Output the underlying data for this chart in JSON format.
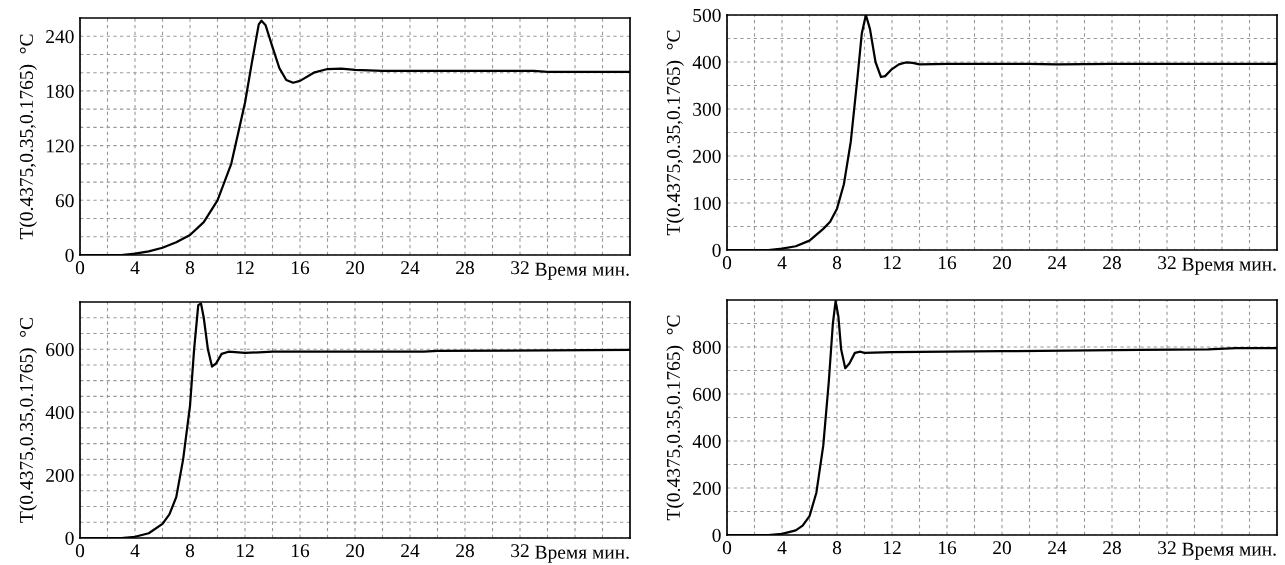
{
  "chart_data": [
    {
      "type": "line",
      "xlabel": "Время мин.",
      "ylabel": "T(0.4375,0.35,0.1765)  °C",
      "grid": true,
      "xlim": [
        0,
        40
      ],
      "ylim": [
        0,
        260
      ],
      "xticks": [
        0,
        {
          "value": 2,
          "label": null
        },
        4,
        {
          "value": 6,
          "label": null
        },
        8,
        {
          "value": 10,
          "label": null
        },
        12,
        {
          "value": 14,
          "label": null
        },
        16,
        {
          "value": 18,
          "label": null
        },
        20,
        {
          "value": 22,
          "label": null
        },
        24,
        {
          "value": 26,
          "label": null
        },
        28,
        {
          "value": 30,
          "label": null
        },
        32,
        {
          "value": 34,
          "label": null
        },
        {
          "value": 36,
          "label": null
        },
        {
          "value": 38,
          "label": null
        }
      ],
      "yticks": [
        0,
        {
          "value": 20,
          "label": null
        },
        {
          "value": 40,
          "label": null
        },
        60,
        {
          "value": 80,
          "label": null
        },
        {
          "value": 100,
          "label": null
        },
        120,
        {
          "value": 140,
          "label": null
        },
        {
          "value": 160,
          "label": null
        },
        180,
        {
          "value": 200,
          "label": null
        },
        {
          "value": 220,
          "label": null
        },
        240
      ],
      "series": [
        {
          "color": "#000000",
          "x": [
            0,
            3,
            4,
            5,
            6,
            7,
            8,
            9,
            10,
            11,
            12,
            12.5,
            13,
            13.2,
            13.5,
            14,
            14.5,
            15,
            15.5,
            16,
            17,
            18,
            19,
            20,
            22,
            30,
            33,
            34,
            40
          ],
          "values": [
            0,
            0,
            1.5,
            4,
            8,
            14,
            22,
            36,
            60,
            100,
            167,
            211,
            253,
            257,
            252,
            228,
            205,
            192,
            189,
            191,
            200,
            204,
            204.5,
            203,
            202,
            202,
            202,
            201,
            201
          ]
        }
      ]
    },
    {
      "type": "line",
      "xlabel": "Время мин.",
      "ylabel": "T(0.4375,0.35,0.1765)  °C",
      "grid": true,
      "xlim": [
        0,
        40
      ],
      "ylim": [
        0,
        500
      ],
      "xticks": [
        0,
        {
          "value": 2,
          "label": null
        },
        4,
        {
          "value": 6,
          "label": null
        },
        8,
        {
          "value": 10,
          "label": null
        },
        12,
        {
          "value": 14,
          "label": null
        },
        16,
        {
          "value": 18,
          "label": null
        },
        20,
        {
          "value": 22,
          "label": null
        },
        24,
        {
          "value": 26,
          "label": null
        },
        28,
        {
          "value": 30,
          "label": null
        },
        32,
        {
          "value": 34,
          "label": null
        },
        {
          "value": 36,
          "label": null
        },
        {
          "value": 38,
          "label": null
        }
      ],
      "yticks": [
        0,
        {
          "value": 50,
          "label": null
        },
        100,
        {
          "value": 150,
          "label": null
        },
        200,
        {
          "value": 250,
          "label": null
        },
        300,
        {
          "value": 350,
          "label": null
        },
        400,
        {
          "value": 450,
          "label": null
        },
        500
      ],
      "series": [
        {
          "color": "#000000",
          "x": [
            0,
            3,
            4,
            5,
            6,
            7,
            7.5,
            8,
            8.5,
            9,
            9.5,
            9.8,
            10.1,
            10.4,
            10.8,
            11.2,
            11.5,
            12,
            12.5,
            13,
            13.5,
            14,
            16,
            22,
            24,
            28,
            40
          ],
          "values": [
            0,
            0,
            3,
            8,
            20,
            45,
            60,
            88,
            140,
            230,
            370,
            460,
            500,
            470,
            400,
            368,
            370,
            385,
            395,
            399,
            398,
            395,
            396,
            396,
            395,
            396,
            396
          ]
        }
      ]
    },
    {
      "type": "line",
      "xlabel": "Время мин.",
      "ylabel": "T(0.4375,0.35,0.1765)  °C",
      "grid": true,
      "xlim": [
        0,
        40
      ],
      "ylim": [
        0,
        750
      ],
      "xticks": [
        0,
        {
          "value": 2,
          "label": null
        },
        4,
        {
          "value": 6,
          "label": null
        },
        8,
        {
          "value": 10,
          "label": null
        },
        12,
        {
          "value": 14,
          "label": null
        },
        16,
        {
          "value": 18,
          "label": null
        },
        20,
        {
          "value": 22,
          "label": null
        },
        24,
        {
          "value": 26,
          "label": null
        },
        28,
        {
          "value": 30,
          "label": null
        },
        32,
        {
          "value": 34,
          "label": null
        },
        {
          "value": 36,
          "label": null
        },
        {
          "value": 38,
          "label": null
        }
      ],
      "yticks": [
        0,
        {
          "value": 50,
          "label": null
        },
        {
          "value": 100,
          "label": null
        },
        {
          "value": 150,
          "label": null
        },
        200,
        {
          "value": 250,
          "label": null
        },
        {
          "value": 300,
          "label": null
        },
        {
          "value": 350,
          "label": null
        },
        400,
        {
          "value": 450,
          "label": null
        },
        {
          "value": 500,
          "label": null
        },
        {
          "value": 550,
          "label": null
        },
        600,
        {
          "value": 650,
          "label": null
        },
        {
          "value": 700,
          "label": null
        }
      ],
      "series": [
        {
          "color": "#000000",
          "x": [
            0,
            3,
            4,
            5,
            6,
            6.5,
            7,
            7.5,
            8,
            8.3,
            8.6,
            8.8,
            9,
            9.3,
            9.6,
            9.9,
            10.3,
            10.8,
            12,
            14,
            25,
            26,
            34,
            40
          ],
          "values": [
            0,
            0,
            4,
            15,
            45,
            75,
            130,
            250,
            420,
            600,
            740,
            745,
            700,
            600,
            545,
            555,
            585,
            592,
            588,
            592,
            592,
            595,
            596,
            598
          ]
        }
      ]
    },
    {
      "type": "line",
      "xlabel": "Время мин.",
      "ylabel": "T(0.4375,0.35,0.1765)  °C",
      "grid": true,
      "xlim": [
        0,
        40
      ],
      "ylim": [
        0,
        1000
      ],
      "xticks": [
        0,
        {
          "value": 2,
          "label": null
        },
        4,
        {
          "value": 6,
          "label": null
        },
        8,
        {
          "value": 10,
          "label": null
        },
        12,
        {
          "value": 14,
          "label": null
        },
        16,
        {
          "value": 18,
          "label": null
        },
        20,
        {
          "value": 22,
          "label": null
        },
        24,
        {
          "value": 26,
          "label": null
        },
        28,
        {
          "value": 30,
          "label": null
        },
        32,
        {
          "value": 34,
          "label": null
        },
        {
          "value": 36,
          "label": null
        },
        {
          "value": 38,
          "label": null
        }
      ],
      "yticks": [
        0,
        {
          "value": 100,
          "label": null
        },
        200,
        {
          "value": 300,
          "label": null
        },
        400,
        {
          "value": 500,
          "label": null
        },
        600,
        {
          "value": 700,
          "label": null
        },
        800,
        {
          "value": 900,
          "label": null
        }
      ],
      "series": [
        {
          "color": "#000000",
          "x": [
            0,
            3,
            4,
            5,
            5.5,
            6,
            6.5,
            7,
            7.4,
            7.7,
            7.9,
            8.1,
            8.3,
            8.6,
            8.9,
            9.3,
            9.7,
            10,
            12,
            20,
            30,
            35,
            37,
            40
          ],
          "values": [
            0,
            0,
            5,
            20,
            40,
            80,
            180,
            380,
            650,
            900,
            995,
            930,
            790,
            710,
            730,
            775,
            780,
            775,
            778,
            782,
            788,
            790,
            795,
            795
          ]
        }
      ]
    }
  ]
}
